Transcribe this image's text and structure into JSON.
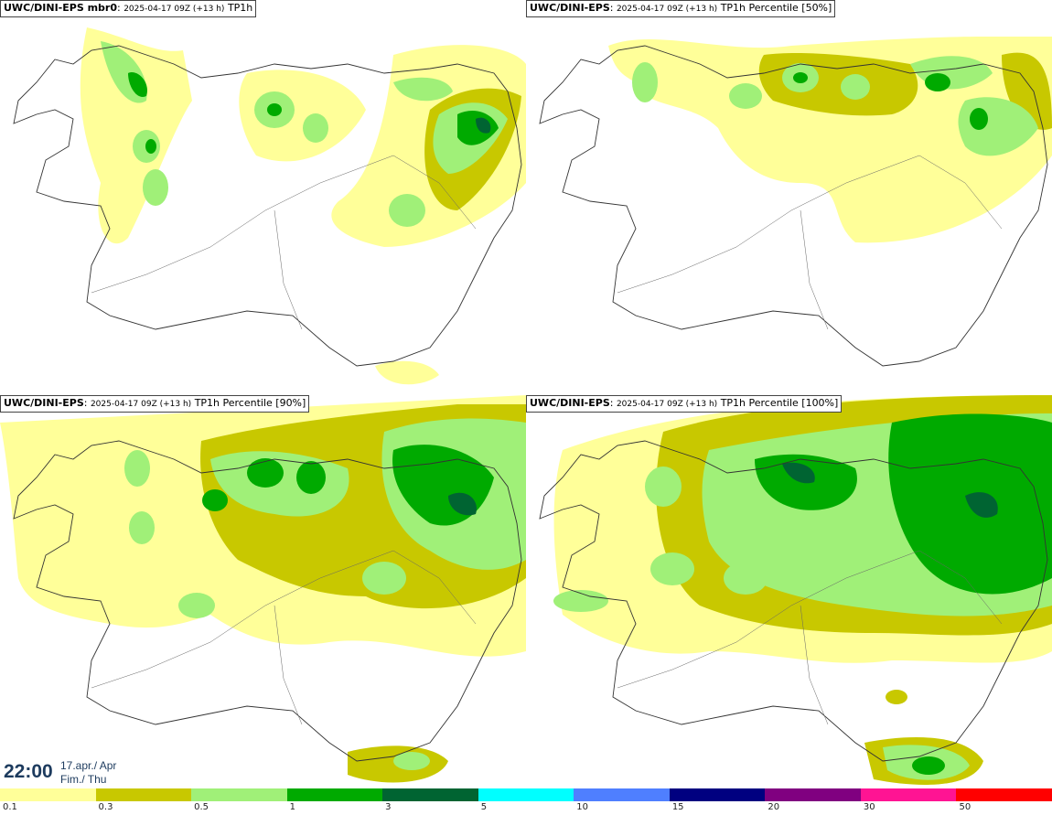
{
  "panels": [
    {
      "model": "UWC/DINI-EPS mbr0",
      "run": "2025-04-17 09Z (+13 h)",
      "field": "TP1h"
    },
    {
      "model": "UWC/DINI-EPS",
      "run": "2025-04-17 09Z (+13 h)",
      "field": "TP1h Percentile [50%]"
    },
    {
      "model": "UWC/DINI-EPS",
      "run": "2025-04-17 09Z (+13 h)",
      "field": "TP1h Percentile [90%]"
    },
    {
      "model": "UWC/DINI-EPS",
      "run": "2025-04-17 09Z (+13 h)",
      "field": "TP1h Percentile [100%]"
    }
  ],
  "valid_time": {
    "clock": "22:00",
    "date_line1": "17.apr./ Apr",
    "date_line2": "Fim./ Thu"
  },
  "legend": {
    "colors": [
      "#ffff99",
      "#c8c800",
      "#a0f078",
      "#00aa00",
      "#006432",
      "#00ffff",
      "#4f7fff",
      "#000080",
      "#800080",
      "#ff1493",
      "#ff0000"
    ],
    "ticks": [
      "0.1",
      "0.3",
      "0.5",
      "1",
      "3",
      "5",
      "10",
      "15",
      "20",
      "30",
      "50"
    ]
  }
}
